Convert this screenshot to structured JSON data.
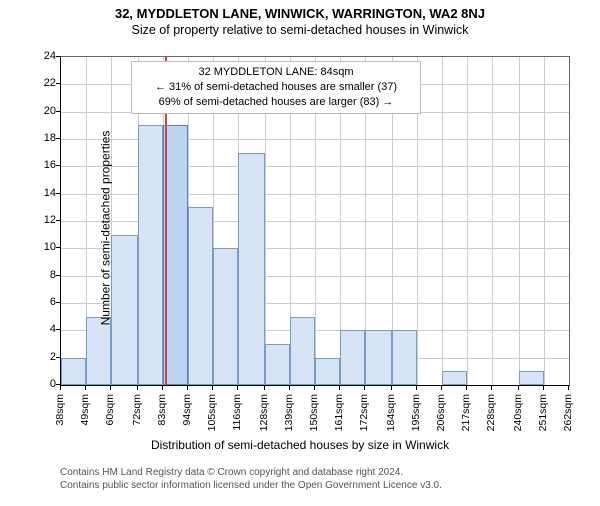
{
  "title_line1": "32, MYDDLETON LANE, WINWICK, WARRINGTON, WA2 8NJ",
  "title_line2": "Size of property relative to semi-detached houses in Winwick",
  "ylabel": "Number of semi-detached properties",
  "xlabel": "Distribution of semi-detached houses by size in Winwick",
  "attribution_line1": "Contains HM Land Registry data © Crown copyright and database right 2024.",
  "attribution_line2": "Contains public sector information licensed under the Open Government Licence v3.0.",
  "annotation": {
    "line1": "32 MYDDLETON LANE: 84sqm",
    "line2": "← 31% of semi-detached houses are smaller (37)",
    "line3": "69% of semi-detached houses are larger (83) →"
  },
  "chart": {
    "type": "histogram",
    "ylim": [
      0,
      24
    ],
    "ytick_step": 2,
    "xticks": [
      38,
      49,
      60,
      72,
      83,
      94,
      105,
      116,
      128,
      139,
      150,
      161,
      172,
      184,
      195,
      206,
      217,
      228,
      240,
      251,
      262
    ],
    "xtick_suffix": "sqm",
    "bars": [
      {
        "x0": 38,
        "x1": 49,
        "value": 2
      },
      {
        "x0": 49,
        "x1": 60,
        "value": 5
      },
      {
        "x0": 60,
        "x1": 72,
        "value": 11
      },
      {
        "x0": 72,
        "x1": 83,
        "value": 19
      },
      {
        "x0": 83,
        "x1": 94,
        "value": 19
      },
      {
        "x0": 94,
        "x1": 105,
        "value": 13
      },
      {
        "x0": 105,
        "x1": 116,
        "value": 10
      },
      {
        "x0": 116,
        "x1": 128,
        "value": 17
      },
      {
        "x0": 128,
        "x1": 139,
        "value": 3
      },
      {
        "x0": 139,
        "x1": 150,
        "value": 5
      },
      {
        "x0": 150,
        "x1": 161,
        "value": 2
      },
      {
        "x0": 161,
        "x1": 172,
        "value": 4
      },
      {
        "x0": 172,
        "x1": 184,
        "value": 4
      },
      {
        "x0": 184,
        "x1": 195,
        "value": 4
      },
      {
        "x0": 195,
        "x1": 206,
        "value": 0
      },
      {
        "x0": 206,
        "x1": 217,
        "value": 1
      },
      {
        "x0": 217,
        "x1": 228,
        "value": 0
      },
      {
        "x0": 228,
        "x1": 240,
        "value": 0
      },
      {
        "x0": 240,
        "x1": 251,
        "value": 1
      },
      {
        "x0": 251,
        "x1": 262,
        "value": 0
      }
    ],
    "bar_fill": "#d6e4f5",
    "bar_border": "#7a9bc4",
    "bar_highlight_fill": "#bcd3ef",
    "bar_highlight_border": "#5b84b8",
    "marker_x": 84,
    "marker_color": "#d04040",
    "grid_color": "#cccccc",
    "background": "#ffffff",
    "axis_color": "#000000",
    "label_fontsize": 12,
    "tick_fontsize": 11,
    "title_fontsize": 13
  }
}
